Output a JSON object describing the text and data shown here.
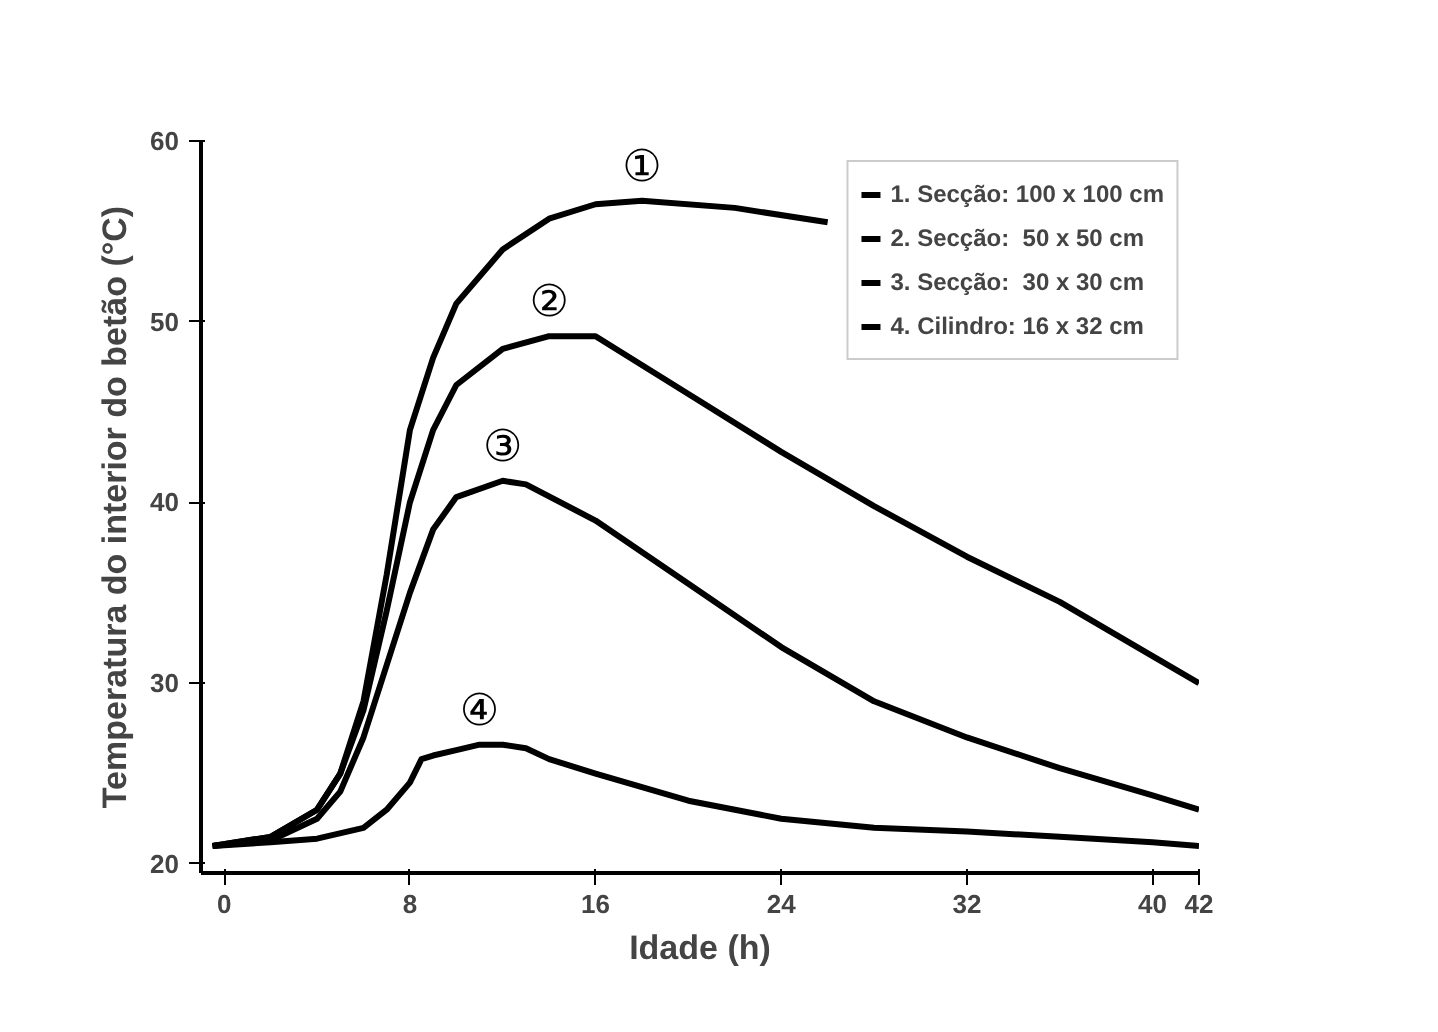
{
  "chart_data": {
    "type": "line",
    "xlabel": "Idade (h)",
    "ylabel": "Temperatura do interior do betão (°C)",
    "xlim": [
      -1,
      42
    ],
    "ylim": [
      19.5,
      60
    ],
    "xticks": [
      0,
      8,
      16,
      24,
      32,
      40,
      42
    ],
    "yticks": [
      20,
      30,
      40,
      50,
      60
    ],
    "grid": false,
    "legend": "top right",
    "series": [
      {
        "name": "1. Secção: 100 x 100 cm",
        "color": "#000000",
        "x": [
          -0.5,
          2,
          4,
          5,
          6,
          7,
          8,
          9,
          10,
          12,
          14,
          16,
          18,
          22,
          26
        ],
        "values": [
          21,
          21.5,
          23,
          25,
          29,
          36,
          44,
          48,
          51,
          54,
          55.7,
          56.5,
          56.7,
          56.3,
          55.5
        ]
      },
      {
        "name": "2. Secção:  50 x 50 cm",
        "color": "#000000",
        "x": [
          -0.5,
          2,
          4,
          5,
          6,
          7,
          8,
          9,
          10,
          12,
          14,
          16,
          20,
          24,
          28,
          32,
          36,
          40,
          42
        ],
        "values": [
          21,
          21.5,
          23,
          25,
          28.5,
          34,
          40,
          44,
          46.5,
          48.5,
          49.2,
          49.2,
          46,
          42.8,
          39.8,
          37,
          34.5,
          31.5,
          30
        ]
      },
      {
        "name": "3. Secção:  30 x 30 cm",
        "color": "#000000",
        "x": [
          -0.5,
          2,
          4,
          5,
          6,
          7,
          8,
          9,
          10,
          12,
          13,
          16,
          20,
          24,
          28,
          32,
          36,
          40,
          42
        ],
        "values": [
          21,
          21.3,
          22.5,
          24,
          27,
          31,
          35,
          38.5,
          40.3,
          41.2,
          41,
          39,
          35.5,
          32,
          29,
          27,
          25.3,
          23.8,
          23
        ]
      },
      {
        "name": "4. Cilindro: 16 x 32 cm",
        "color": "#000000",
        "x": [
          -0.5,
          2,
          4,
          6,
          7,
          8,
          8.5,
          9,
          10,
          11,
          12,
          13,
          14,
          16,
          20,
          24,
          28,
          32,
          36,
          40,
          42
        ],
        "values": [
          21,
          21.2,
          21.4,
          22,
          23,
          24.5,
          25.8,
          26,
          26.3,
          26.6,
          26.6,
          26.4,
          25.8,
          25,
          23.5,
          22.5,
          22,
          21.8,
          21.5,
          21.2,
          21
        ]
      }
    ],
    "annotations": [
      "①",
      "②",
      "③",
      "④"
    ]
  }
}
